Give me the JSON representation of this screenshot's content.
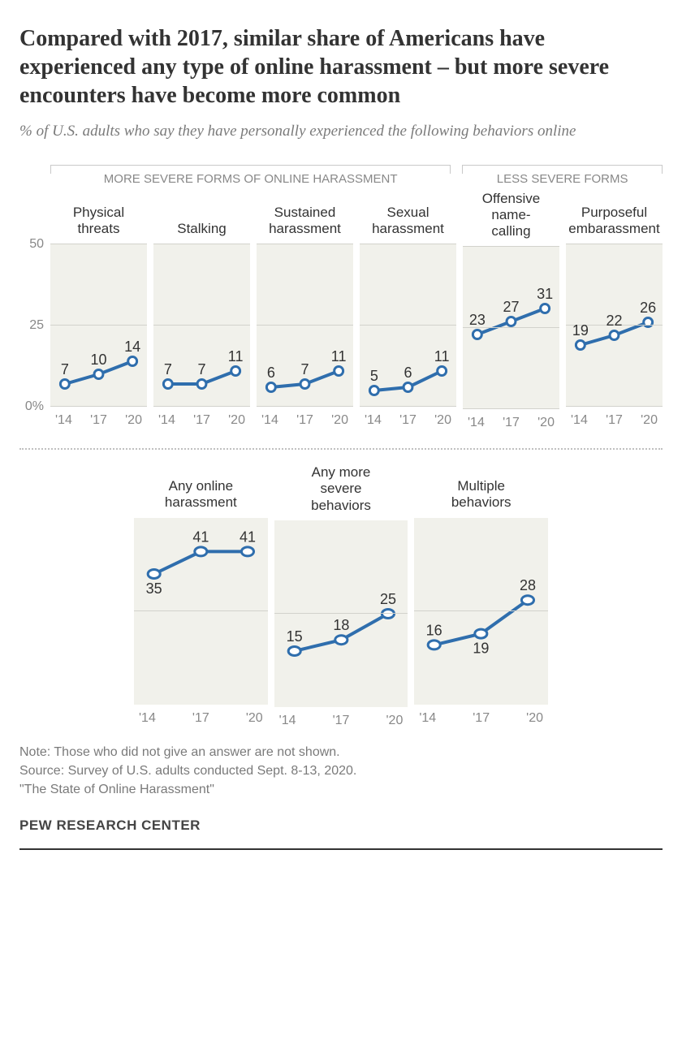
{
  "title": "Compared with 2017, similar share of Americans have experienced any type of online harassment – but more severe encounters have become more common",
  "subtitle": "% of U.S. adults who say they have personally experienced the following behaviors online",
  "group_labels": {
    "severe": "MORE SEVERE FORMS OF ONLINE HARASSMENT",
    "less_severe": "LESS SEVERE FORMS"
  },
  "row1_ymax": 50,
  "row1_yticks": [
    0,
    25,
    50
  ],
  "row2_ymax": 50,
  "x_ticks": [
    "'14",
    "'17",
    "'20"
  ],
  "line_color": "#2f6ead",
  "marker_fill": "#ffffff",
  "plot_bg": "#f1f1eb",
  "grid_color": "#d2d2cc",
  "text_color": "#333333",
  "axis_text_color": "#888888",
  "row1": [
    {
      "name": "physical-threats",
      "title": "Physical\nthreats",
      "values": [
        7,
        10,
        14
      ]
    },
    {
      "name": "stalking",
      "title": "Stalking",
      "values": [
        7,
        7,
        11
      ]
    },
    {
      "name": "sustained-harassment",
      "title": "Sustained\nharassment",
      "values": [
        6,
        7,
        11
      ]
    },
    {
      "name": "sexual-harassment",
      "title": "Sexual\nharassment",
      "values": [
        5,
        6,
        11
      ]
    },
    {
      "name": "name-calling",
      "title": "Offensive\nname-\ncalling",
      "values": [
        23,
        27,
        31
      ]
    },
    {
      "name": "embarrassment",
      "title": "Purposeful\nembarassment",
      "values": [
        19,
        22,
        26
      ]
    }
  ],
  "row2": [
    {
      "name": "any-online-harassment",
      "title": "Any online\nharassment",
      "values": [
        35,
        41,
        41
      ],
      "label_pos": [
        "below",
        "above",
        "above"
      ]
    },
    {
      "name": "any-more-severe",
      "title": "Any more\nsevere\nbehaviors",
      "values": [
        15,
        18,
        25
      ],
      "label_pos": [
        "above",
        "above",
        "above"
      ]
    },
    {
      "name": "multiple-behaviors",
      "title": "Multiple\nbehaviors",
      "values": [
        16,
        19,
        28
      ],
      "label_pos": [
        "above",
        "below",
        "above"
      ]
    }
  ],
  "note_lines": [
    "Note: Those who did not give an answer are not shown.",
    "Source: Survey of U.S. adults conducted Sept. 8-13, 2020.",
    "\"The State of Online Harassment\""
  ],
  "brand": "PEW RESEARCH CENTER"
}
